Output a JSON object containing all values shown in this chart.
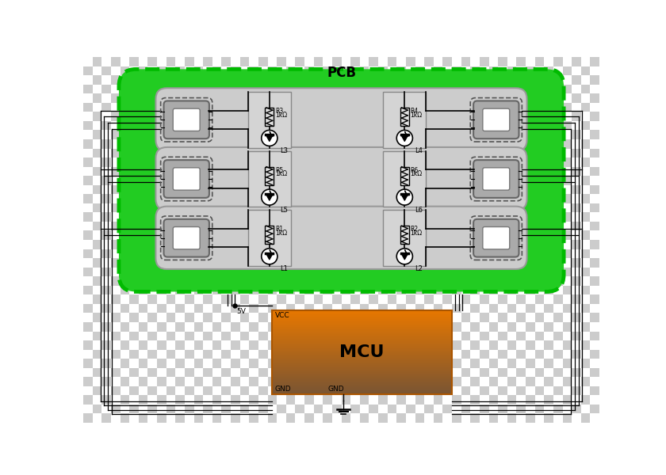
{
  "pcb_fill": "#22cc22",
  "pcb_border": "#00bb00",
  "row_fill": "#cccccc",
  "row_border": "#999999",
  "connector_outer_fill": "#aaaaaa",
  "connector_inner_fill": "#ffffff",
  "mcu_color_top": "#e87800",
  "mcu_color_bottom": "#7a5533",
  "line_color": "#000000",
  "pcb_label": "PCB",
  "mcu_label": "MCU",
  "vcc_label": "VCC",
  "gnd_label": "GND",
  "v5_label": "5V",
  "resistor_value": "1kΩ",
  "rows": [
    {
      "leds": [
        "L3",
        "L4"
      ],
      "resistors": [
        "R3",
        "R4"
      ]
    },
    {
      "leds": [
        "L5",
        "L6"
      ],
      "resistors": [
        "R5",
        "R6"
      ]
    },
    {
      "leds": [
        "L1",
        "L2"
      ],
      "resistors": [
        "R1",
        "R2"
      ]
    }
  ],
  "checkerboard_light": "#cccccc",
  "checkerboard_dark": "#ffffff",
  "sq": 15
}
